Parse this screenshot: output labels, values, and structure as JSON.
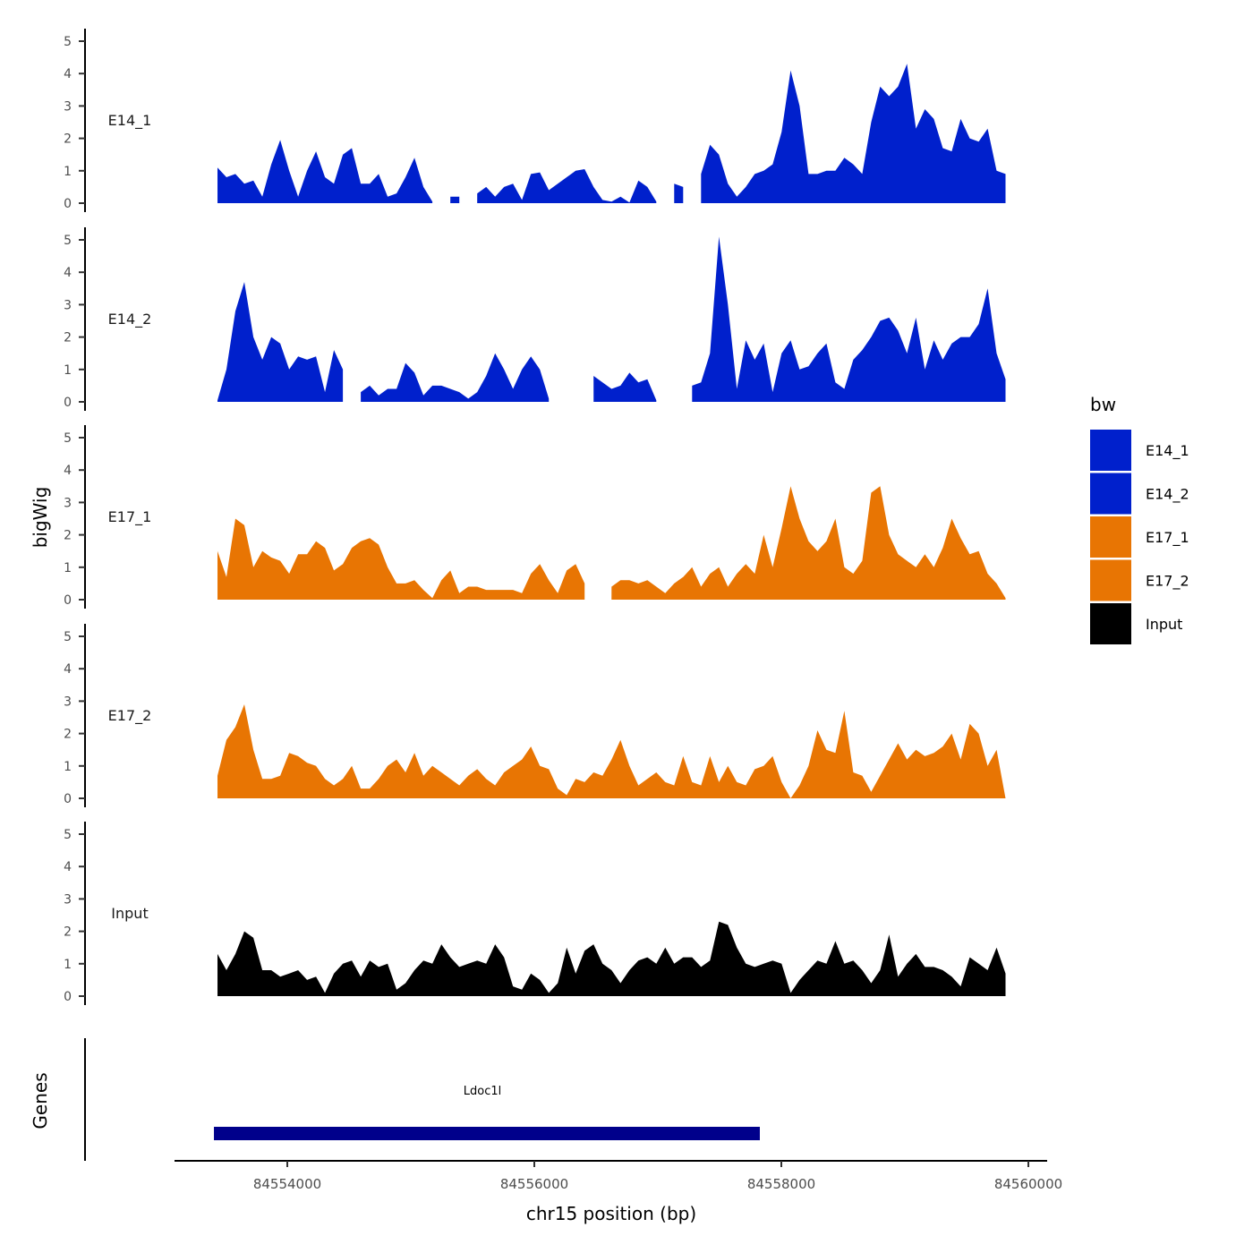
{
  "chart_data": {
    "type": "area",
    "title": "",
    "xlabel": "chr15 position (bp)",
    "ylabel": "bigWig",
    "genes_label": "Genes",
    "xlim": [
      84553000,
      84560100
    ],
    "xticks": [
      84554000,
      84556000,
      84558000,
      84560000
    ],
    "xtick_labels": [
      "84554000",
      "84556000",
      "84558000",
      "84560000"
    ],
    "ylim": [
      0,
      5
    ],
    "yticks": [
      0,
      1,
      2,
      3,
      4,
      5
    ],
    "ytick_labels": [
      "0",
      "1",
      "2",
      "3",
      "4",
      "5"
    ],
    "grid": false,
    "sample_start_bp": 84553435,
    "sample_step_bp": 72.5,
    "legend": {
      "title": "bw",
      "placement": "right"
    },
    "series": [
      {
        "name": "E14_1",
        "color": "#0020CC",
        "values": [
          1.1,
          0.8,
          0.9,
          0.6,
          0.7,
          0.2,
          1.2,
          1.95,
          1.0,
          0.2,
          1.0,
          1.6,
          0.8,
          0.6,
          1.5,
          1.7,
          0.6,
          0.6,
          0.9,
          0.2,
          0.3,
          0.8,
          1.4,
          0.5,
          0.05,
          null,
          0.2,
          0.2,
          null,
          0.3,
          0.5,
          0.2,
          0.5,
          0.6,
          0.1,
          0.9,
          0.95,
          0.4,
          0.6,
          0.8,
          1.0,
          1.05,
          0.5,
          0.1,
          0.05,
          0.2,
          0.02,
          0.7,
          0.5,
          0.05,
          null,
          0.6,
          0.5,
          null,
          0.9,
          1.8,
          1.5,
          0.6,
          0.2,
          0.5,
          0.9,
          1.0,
          1.2,
          2.2,
          4.1,
          3.0,
          0.9,
          0.9,
          1.0,
          1.0,
          1.4,
          1.2,
          0.9,
          2.5,
          3.6,
          3.3,
          3.6,
          4.3,
          2.3,
          2.9,
          2.6,
          1.7,
          1.6,
          2.6,
          2.0,
          1.9,
          2.3,
          1.0,
          0.9
        ]
      },
      {
        "name": "E14_2",
        "color": "#0020CC",
        "values": [
          0.05,
          1.0,
          2.8,
          3.7,
          2.0,
          1.3,
          2.0,
          1.8,
          1.0,
          1.4,
          1.3,
          1.4,
          0.3,
          1.6,
          1.0,
          null,
          0.3,
          0.5,
          0.2,
          0.4,
          0.4,
          1.2,
          0.9,
          0.2,
          0.5,
          0.5,
          0.4,
          0.3,
          0.1,
          0.3,
          0.8,
          1.5,
          1.0,
          0.4,
          1.0,
          1.4,
          1.0,
          0.1,
          null,
          null,
          null,
          null,
          0.8,
          0.6,
          0.4,
          0.5,
          0.9,
          0.6,
          0.7,
          0.05,
          null,
          null,
          null,
          0.5,
          0.6,
          1.5,
          5.1,
          3.0,
          0.4,
          1.9,
          1.3,
          1.8,
          0.3,
          1.5,
          1.9,
          1.0,
          1.1,
          1.5,
          1.8,
          0.6,
          0.4,
          1.3,
          1.6,
          2.0,
          2.5,
          2.6,
          2.2,
          1.5,
          2.6,
          1.0,
          1.9,
          1.3,
          1.8,
          2.0,
          2.0,
          2.4,
          3.5,
          1.5,
          0.7
        ]
      },
      {
        "name": "E17_1",
        "color": "#E87503",
        "values": [
          1.5,
          0.7,
          2.5,
          2.3,
          1.0,
          1.5,
          1.3,
          1.2,
          0.8,
          1.4,
          1.4,
          1.8,
          1.6,
          0.9,
          1.1,
          1.6,
          1.8,
          1.9,
          1.7,
          1.0,
          0.5,
          0.5,
          0.6,
          0.3,
          0.05,
          0.6,
          0.9,
          0.2,
          0.4,
          0.4,
          0.3,
          0.3,
          0.3,
          0.3,
          0.2,
          0.8,
          1.1,
          0.6,
          0.2,
          0.9,
          1.1,
          0.5,
          null,
          null,
          0.4,
          0.6,
          0.6,
          0.5,
          0.6,
          0.4,
          0.2,
          0.5,
          0.7,
          1.0,
          0.4,
          0.8,
          1.0,
          0.4,
          0.8,
          1.1,
          0.8,
          2.0,
          1.0,
          2.2,
          3.5,
          2.5,
          1.8,
          1.5,
          1.8,
          2.5,
          1.0,
          0.8,
          1.2,
          3.3,
          3.5,
          2.0,
          1.4,
          1.2,
          1.0,
          1.4,
          1.0,
          1.6,
          2.5,
          1.9,
          1.4,
          1.5,
          0.8,
          0.5,
          0.05
        ]
      },
      {
        "name": "E17_2",
        "color": "#E87503",
        "values": [
          0.7,
          1.8,
          2.2,
          2.9,
          1.5,
          0.6,
          0.6,
          0.7,
          1.4,
          1.3,
          1.1,
          1.0,
          0.6,
          0.4,
          0.6,
          1.0,
          0.3,
          0.3,
          0.6,
          1.0,
          1.2,
          0.8,
          1.4,
          0.7,
          1.0,
          0.8,
          0.6,
          0.4,
          0.7,
          0.9,
          0.6,
          0.4,
          0.8,
          1.0,
          1.2,
          1.6,
          1.0,
          0.9,
          0.3,
          0.1,
          0.6,
          0.5,
          0.8,
          0.7,
          1.2,
          1.8,
          1.0,
          0.4,
          0.6,
          0.8,
          0.5,
          0.4,
          1.3,
          0.5,
          0.4,
          1.3,
          0.5,
          1.0,
          0.5,
          0.4,
          0.9,
          1.0,
          1.3,
          0.5,
          0.0,
          0.4,
          1.0,
          2.1,
          1.5,
          1.4,
          2.7,
          0.8,
          0.7,
          0.2,
          0.7,
          1.2,
          1.7,
          1.2,
          1.5,
          1.3,
          1.4,
          1.6,
          2.0,
          1.2,
          2.3,
          2.0,
          1.0,
          1.5,
          0.0
        ]
      },
      {
        "name": "Input",
        "color": "#000000",
        "values": [
          1.3,
          0.8,
          1.3,
          2.0,
          1.8,
          0.8,
          0.8,
          0.6,
          0.7,
          0.8,
          0.5,
          0.6,
          0.1,
          0.7,
          1.0,
          1.1,
          0.6,
          1.1,
          0.9,
          1.0,
          0.2,
          0.4,
          0.8,
          1.1,
          1.0,
          1.6,
          1.2,
          0.9,
          1.0,
          1.1,
          1.0,
          1.6,
          1.2,
          0.3,
          0.2,
          0.7,
          0.5,
          0.1,
          0.4,
          1.5,
          0.7,
          1.4,
          1.6,
          1.0,
          0.8,
          0.4,
          0.8,
          1.1,
          1.2,
          1.0,
          1.5,
          1.0,
          1.2,
          1.2,
          0.9,
          1.1,
          2.3,
          2.2,
          1.5,
          1.0,
          0.9,
          1.0,
          1.1,
          1.0,
          0.1,
          0.5,
          0.8,
          1.1,
          1.0,
          1.7,
          1.0,
          1.1,
          0.8,
          0.4,
          0.8,
          1.9,
          0.6,
          1.0,
          1.3,
          0.9,
          0.9,
          0.8,
          0.6,
          0.3,
          1.2,
          1.0,
          0.8,
          1.5,
          0.7
        ]
      }
    ],
    "genes": [
      {
        "name": "Ldoc1l",
        "start": 84553406,
        "end": 84557826,
        "color": "#00008B"
      }
    ]
  }
}
